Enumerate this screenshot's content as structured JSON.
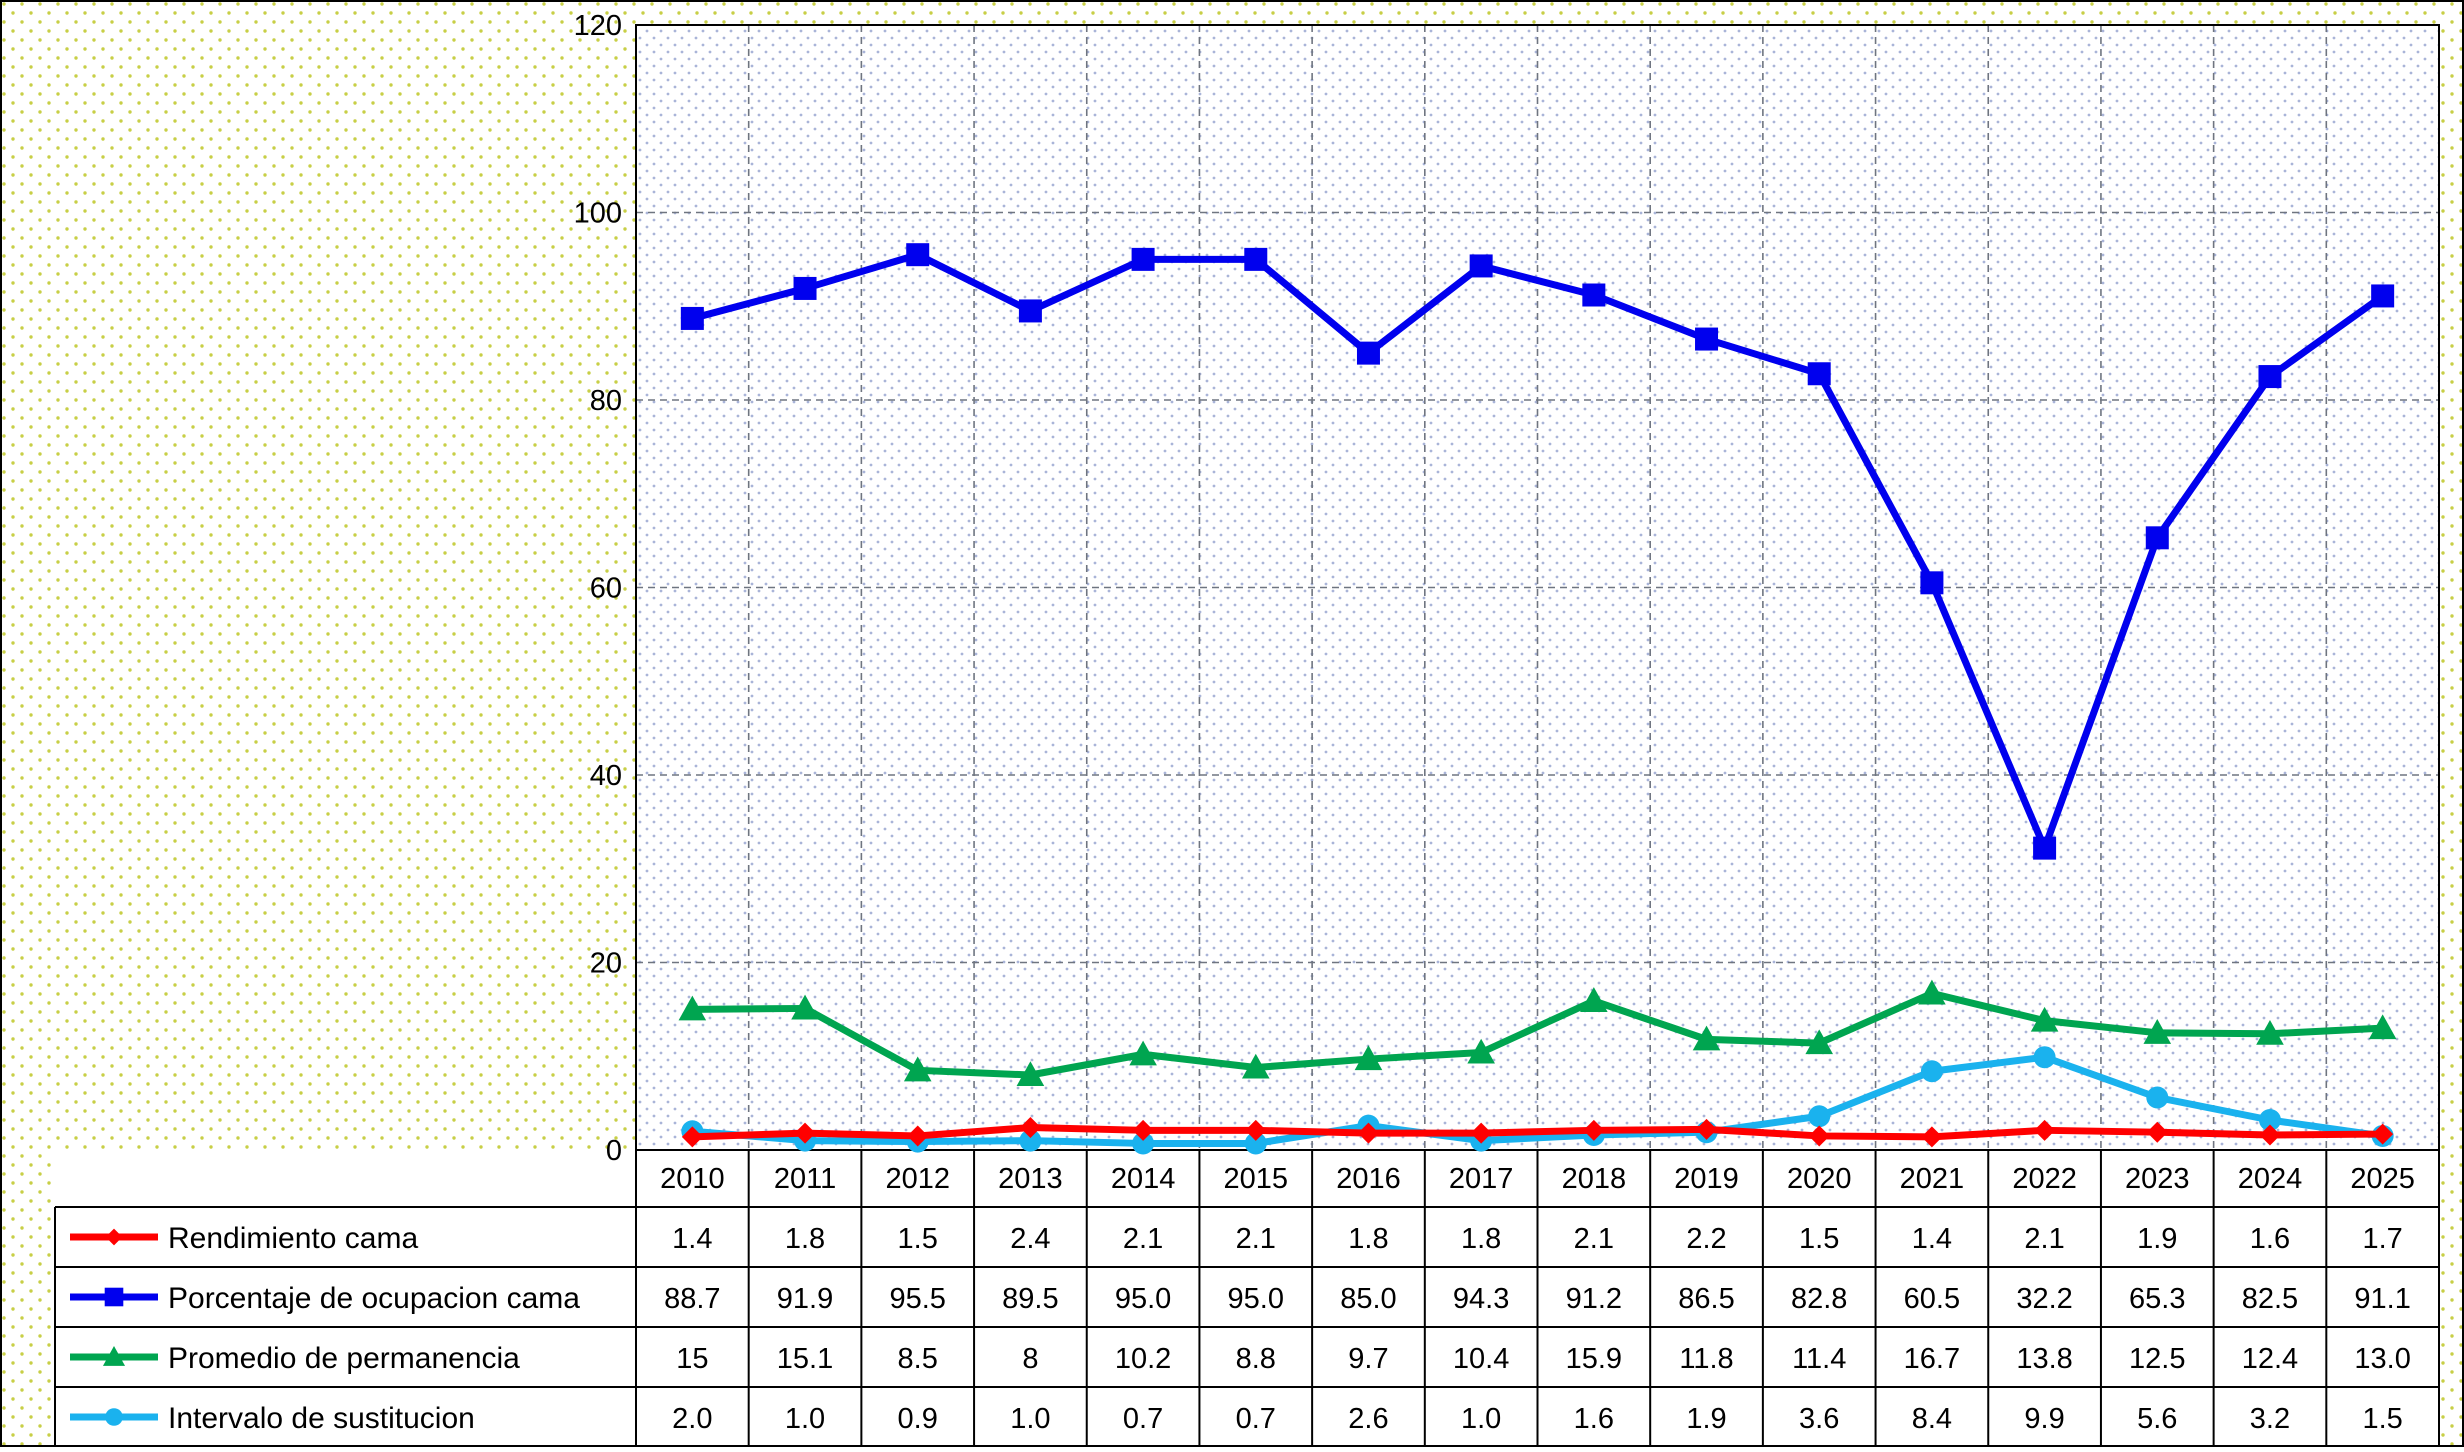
{
  "chart_data": {
    "type": "line",
    "title": "",
    "xlabel": "",
    "ylabel": "",
    "ylim": [
      0,
      120
    ],
    "y_ticks": [
      "0",
      "20",
      "40",
      "60",
      "80",
      "100",
      "120"
    ],
    "grid": true,
    "legend": "data-table-below",
    "categories": [
      "2010",
      "2011",
      "2012",
      "2013",
      "2014",
      "2015",
      "2016",
      "2017",
      "2018",
      "2019",
      "2020",
      "2021",
      "2022",
      "2023",
      "2024",
      "2025"
    ],
    "series": [
      {
        "name": "Rendimiento cama",
        "color": "#ff0000",
        "marker": "diamond",
        "values": [
          1.4,
          1.8,
          1.5,
          2.4,
          2.1,
          2.1,
          1.8,
          1.8,
          2.1,
          2.2,
          1.5,
          1.4,
          2.1,
          1.9,
          1.6,
          1.7
        ],
        "labels": [
          "1.4",
          "1.8",
          "1.5",
          "2.4",
          "2.1",
          "2.1",
          "1.8",
          "1.8",
          "2.1",
          "2.2",
          "1.5",
          "1.4",
          "2.1",
          "1.9",
          "1.6",
          "1.7"
        ]
      },
      {
        "name": "Porcentaje de ocupacion cama",
        "color": "#0000ee",
        "marker": "square",
        "values": [
          88.7,
          91.9,
          95.5,
          89.5,
          95.0,
          95.0,
          85.0,
          94.3,
          91.2,
          86.5,
          82.8,
          60.5,
          32.2,
          65.3,
          82.5,
          91.1
        ],
        "labels": [
          "88.7",
          "91.9",
          "95.5",
          "89.5",
          "95.0",
          "95.0",
          "85.0",
          "94.3",
          "91.2",
          "86.5",
          "82.8",
          "60.5",
          "32.2",
          "65.3",
          "82.5",
          "91.1"
        ]
      },
      {
        "name": "Promedio de permanencia",
        "color": "#00a550",
        "marker": "triangle",
        "values": [
          15,
          15.1,
          8.5,
          8,
          10.2,
          8.8,
          9.7,
          10.4,
          15.9,
          11.8,
          11.4,
          16.7,
          13.8,
          12.5,
          12.4,
          13.0
        ],
        "labels": [
          "15",
          "15.1",
          "8.5",
          "8",
          "10.2",
          "8.8",
          "9.7",
          "10.4",
          "15.9",
          "11.8",
          "11.4",
          "16.7",
          "13.8",
          "12.5",
          "12.4",
          "13.0"
        ]
      },
      {
        "name": "Intervalo de sustitucion",
        "color": "#1ab2ee",
        "marker": "circle",
        "values": [
          2.0,
          1.0,
          0.9,
          1.0,
          0.7,
          0.7,
          2.6,
          1.0,
          1.6,
          1.9,
          3.6,
          8.4,
          9.9,
          5.6,
          3.2,
          1.5
        ],
        "labels": [
          "2.0",
          "1.0",
          "0.9",
          "1.0",
          "0.7",
          "0.7",
          "2.6",
          "1.0",
          "1.6",
          "1.9",
          "3.6",
          "8.4",
          "9.9",
          "5.6",
          "3.2",
          "1.5"
        ]
      }
    ]
  }
}
